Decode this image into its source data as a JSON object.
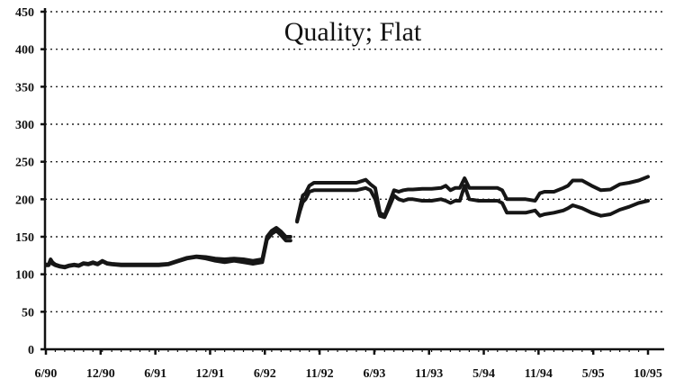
{
  "chart_data": {
    "type": "line",
    "title": "Quality; Flat",
    "xlabel": "",
    "ylabel": "",
    "ylim": [
      0,
      450
    ],
    "yticks": [
      0,
      50,
      100,
      150,
      200,
      250,
      300,
      350,
      400,
      450
    ],
    "y_tick_labels": [
      "0",
      "50",
      "100",
      "150",
      "200",
      "250",
      "300",
      "350",
      "400",
      "450"
    ],
    "x_tick_labels": [
      "6/90",
      "12/90",
      "6/91",
      "12/91",
      "6/92",
      "11/92",
      "6/93",
      "11/93",
      "5/94",
      "11/94",
      "5/95",
      "10/95"
    ],
    "grid": true,
    "legend": "none",
    "series": [
      {
        "segments": [
          [
            [
              0,
              113
            ],
            [
              0.3,
              113
            ],
            [
              0.5,
              120
            ],
            [
              0.7,
              116
            ],
            [
              1,
              113
            ],
            [
              1.5,
              111
            ],
            [
              2,
              110
            ],
            [
              2.5,
              112
            ],
            [
              3,
              113
            ],
            [
              3.5,
              112
            ],
            [
              4,
              115
            ],
            [
              4.5,
              114
            ],
            [
              5,
              116
            ],
            [
              5.5,
              114
            ],
            [
              6,
              118
            ],
            [
              6.5,
              115
            ],
            [
              7,
              114
            ],
            [
              8,
              113
            ],
            [
              9,
              113
            ],
            [
              10,
              113
            ],
            [
              11,
              113
            ],
            [
              12,
              113
            ],
            [
              13,
              114
            ],
            [
              14,
              118
            ],
            [
              15,
              122
            ],
            [
              16,
              124
            ],
            [
              17,
              123
            ],
            [
              18,
              121
            ],
            [
              19,
              120
            ],
            [
              20,
              121
            ],
            [
              21,
              120
            ],
            [
              22,
              118
            ],
            [
              23,
              120
            ],
            [
              23.5,
              150
            ],
            [
              24,
              158
            ],
            [
              24.5,
              162
            ],
            [
              25,
              157
            ],
            [
              25.5,
              150
            ],
            [
              26,
              150
            ]
          ],
          [
            [
              26.7,
              172
            ],
            [
              27,
              188
            ],
            [
              27.3,
              205
            ],
            [
              27.6,
              208
            ],
            [
              28,
              218
            ],
            [
              28.5,
              222
            ],
            [
              29,
              222
            ],
            [
              30,
              222
            ],
            [
              31,
              222
            ],
            [
              32,
              222
            ],
            [
              33,
              222
            ],
            [
              34,
              226
            ],
            [
              34.5,
              220
            ],
            [
              35,
              215
            ],
            [
              35.5,
              182
            ],
            [
              36,
              178
            ],
            [
              36.5,
              195
            ],
            [
              37,
              212
            ],
            [
              37.5,
              210
            ],
            [
              38,
              212
            ],
            [
              38.5,
              213
            ],
            [
              39,
              213
            ],
            [
              40,
              214
            ],
            [
              41,
              214
            ],
            [
              42,
              215
            ],
            [
              42.5,
              218
            ],
            [
              43,
              212
            ],
            [
              43.5,
              215
            ],
            [
              44,
              215
            ],
            [
              44.5,
              228
            ],
            [
              45,
              215
            ],
            [
              46,
              215
            ],
            [
              47,
              215
            ],
            [
              48,
              215
            ],
            [
              48.5,
              212
            ],
            [
              49,
              200
            ],
            [
              50,
              200
            ],
            [
              51,
              200
            ],
            [
              52,
              198
            ],
            [
              52.5,
              208
            ],
            [
              53,
              210
            ],
            [
              54,
              210
            ],
            [
              55,
              215
            ],
            [
              55.5,
              218
            ],
            [
              56,
              225
            ],
            [
              57,
              225
            ],
            [
              58,
              218
            ],
            [
              59,
              212
            ],
            [
              60,
              213
            ],
            [
              61,
              220
            ],
            [
              62,
              222
            ],
            [
              63,
              225
            ],
            [
              64,
              230
            ]
          ]
        ]
      },
      {
        "segments": [
          [
            [
              0,
              112
            ],
            [
              0.3,
              112
            ],
            [
              0.5,
              118
            ],
            [
              0.7,
              114
            ],
            [
              1,
              112
            ],
            [
              1.5,
              110
            ],
            [
              2,
              109
            ],
            [
              2.5,
              111
            ],
            [
              3,
              112
            ],
            [
              3.5,
              111
            ],
            [
              4,
              114
            ],
            [
              4.5,
              113
            ],
            [
              5,
              115
            ],
            [
              5.5,
              113
            ],
            [
              6,
              117
            ],
            [
              6.5,
              114
            ],
            [
              7,
              113
            ],
            [
              8,
              112
            ],
            [
              9,
              112
            ],
            [
              10,
              112
            ],
            [
              11,
              112
            ],
            [
              12,
              112
            ],
            [
              13,
              113
            ],
            [
              14,
              117
            ],
            [
              15,
              121
            ],
            [
              16,
              123
            ],
            [
              17,
              121
            ],
            [
              18,
              118
            ],
            [
              19,
              116
            ],
            [
              20,
              118
            ],
            [
              21,
              116
            ],
            [
              22,
              114
            ],
            [
              23,
              116
            ],
            [
              23.5,
              146
            ],
            [
              24,
              154
            ],
            [
              24.5,
              158
            ],
            [
              25,
              152
            ],
            [
              25.5,
              145
            ],
            [
              26,
              145
            ]
          ],
          [
            [
              26.7,
              170
            ],
            [
              27,
              184
            ],
            [
              27.3,
              196
            ],
            [
              27.6,
              200
            ],
            [
              28,
              210
            ],
            [
              28.5,
              212
            ],
            [
              29,
              212
            ],
            [
              30,
              212
            ],
            [
              31,
              212
            ],
            [
              32,
              212
            ],
            [
              33,
              212
            ],
            [
              34,
              215
            ],
            [
              34.5,
              212
            ],
            [
              35,
              200
            ],
            [
              35.5,
              178
            ],
            [
              36,
              176
            ],
            [
              36.5,
              190
            ],
            [
              37,
              205
            ],
            [
              37.5,
              200
            ],
            [
              38,
              198
            ],
            [
              38.5,
              200
            ],
            [
              39,
              200
            ],
            [
              40,
              198
            ],
            [
              41,
              198
            ],
            [
              42,
              200
            ],
            [
              42.5,
              198
            ],
            [
              43,
              195
            ],
            [
              43.5,
              198
            ],
            [
              44,
              198
            ],
            [
              44.5,
              218
            ],
            [
              45,
              200
            ],
            [
              46,
              198
            ],
            [
              47,
              198
            ],
            [
              48,
              198
            ],
            [
              48.5,
              195
            ],
            [
              49,
              182
            ],
            [
              50,
              182
            ],
            [
              51,
              182
            ],
            [
              52,
              185
            ],
            [
              52.5,
              178
            ],
            [
              53,
              180
            ],
            [
              54,
              182
            ],
            [
              55,
              185
            ],
            [
              55.5,
              188
            ],
            [
              56,
              192
            ],
            [
              57,
              188
            ],
            [
              58,
              182
            ],
            [
              59,
              178
            ],
            [
              60,
              180
            ],
            [
              61,
              186
            ],
            [
              62,
              190
            ],
            [
              63,
              195
            ],
            [
              64,
              198
            ]
          ]
        ]
      }
    ]
  }
}
